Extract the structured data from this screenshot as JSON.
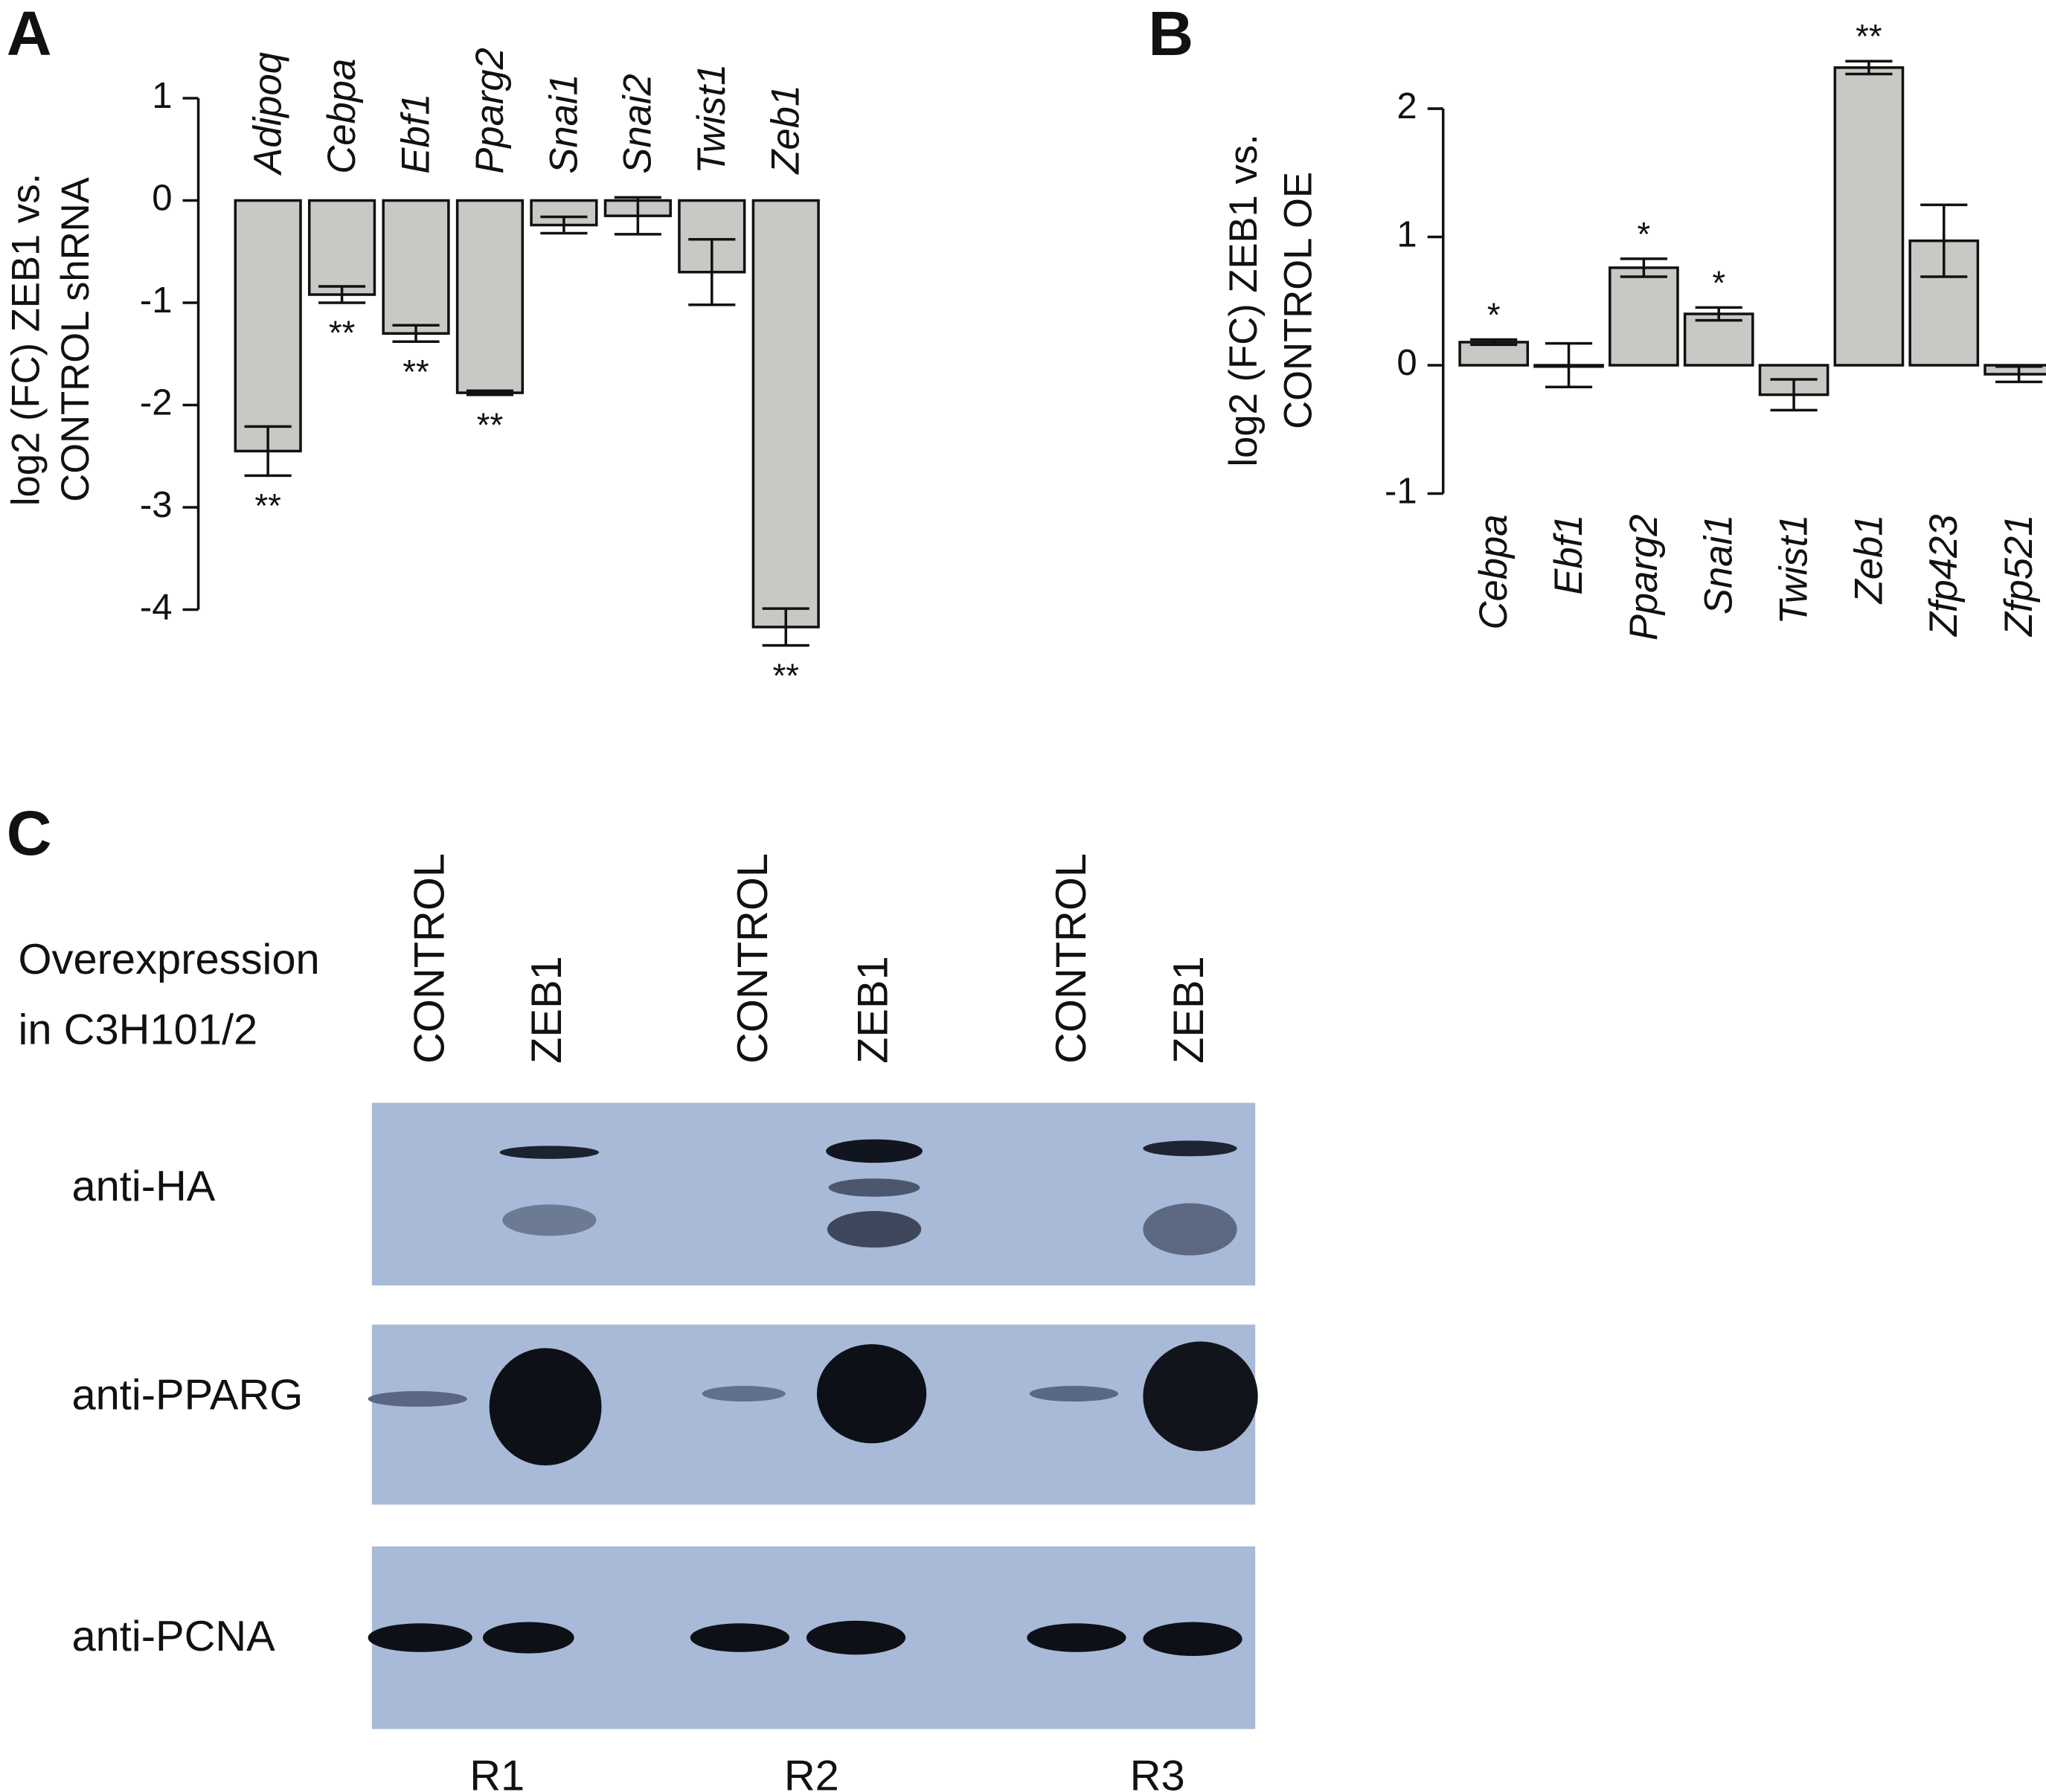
{
  "chart_data": [
    {
      "type": "bar",
      "panel_label": "A",
      "ylabel": [
        "log2 (FC) ZEB1 vs.",
        "CONTROL shRNA"
      ],
      "categories": [
        "Adipoq",
        "Cebpa",
        "Ebf1",
        "Pparg2",
        "Snai1",
        "Snai2",
        "Twist1",
        "Zeb1"
      ],
      "values": [
        -2.45,
        -0.92,
        -1.3,
        -1.88,
        -0.24,
        -0.15,
        -0.7,
        -4.17
      ],
      "errors": [
        0.24,
        0.08,
        0.08,
        0.02,
        0.08,
        0.18,
        0.32,
        0.18
      ],
      "annotations": [
        "**",
        "**",
        "**",
        "**",
        null,
        null,
        null,
        "**"
      ],
      "color": "#c8c8c4",
      "ylim": [
        -4,
        1
      ],
      "yticks": [
        1,
        0,
        -1,
        -2,
        -3,
        -4
      ],
      "category_labels": "top"
    },
    {
      "type": "bar",
      "panel_label": "B",
      "ylabel": [
        "log2 (FC) ZEB1 vs.",
        "CONTROL OE"
      ],
      "categories": [
        "Cebpa",
        "Ebf1",
        "Pparg2",
        "Snai1",
        "Twist1",
        "Zeb1",
        "Zfp423",
        "Zfp521"
      ],
      "values": [
        0.18,
        0,
        0.76,
        0.4,
        -0.23,
        2.32,
        0.97,
        -0.07
      ],
      "errors": [
        0.02,
        0.17,
        0.07,
        0.05,
        0.12,
        0.05,
        0.28,
        0.06
      ],
      "annotations": [
        "*",
        null,
        "*",
        "*",
        null,
        "**",
        null,
        null
      ],
      "color": "#c8c8c4",
      "ylim": [
        -1,
        2
      ],
      "yticks": [
        2,
        1,
        0,
        -1
      ],
      "category_labels": "bottom"
    }
  ],
  "blot": {
    "panel_label": "C",
    "row_header": [
      "Overexpression",
      "in C3H101/2"
    ],
    "lanes": [
      "CONTROL",
      "ZEB1",
      "CONTROL",
      "ZEB1",
      "CONTROL",
      "ZEB1"
    ],
    "antibodies": [
      "anti-HA",
      "anti-PPARG",
      "anti-PCNA"
    ],
    "replicates": [
      "R1",
      "R2",
      "R3"
    ]
  }
}
